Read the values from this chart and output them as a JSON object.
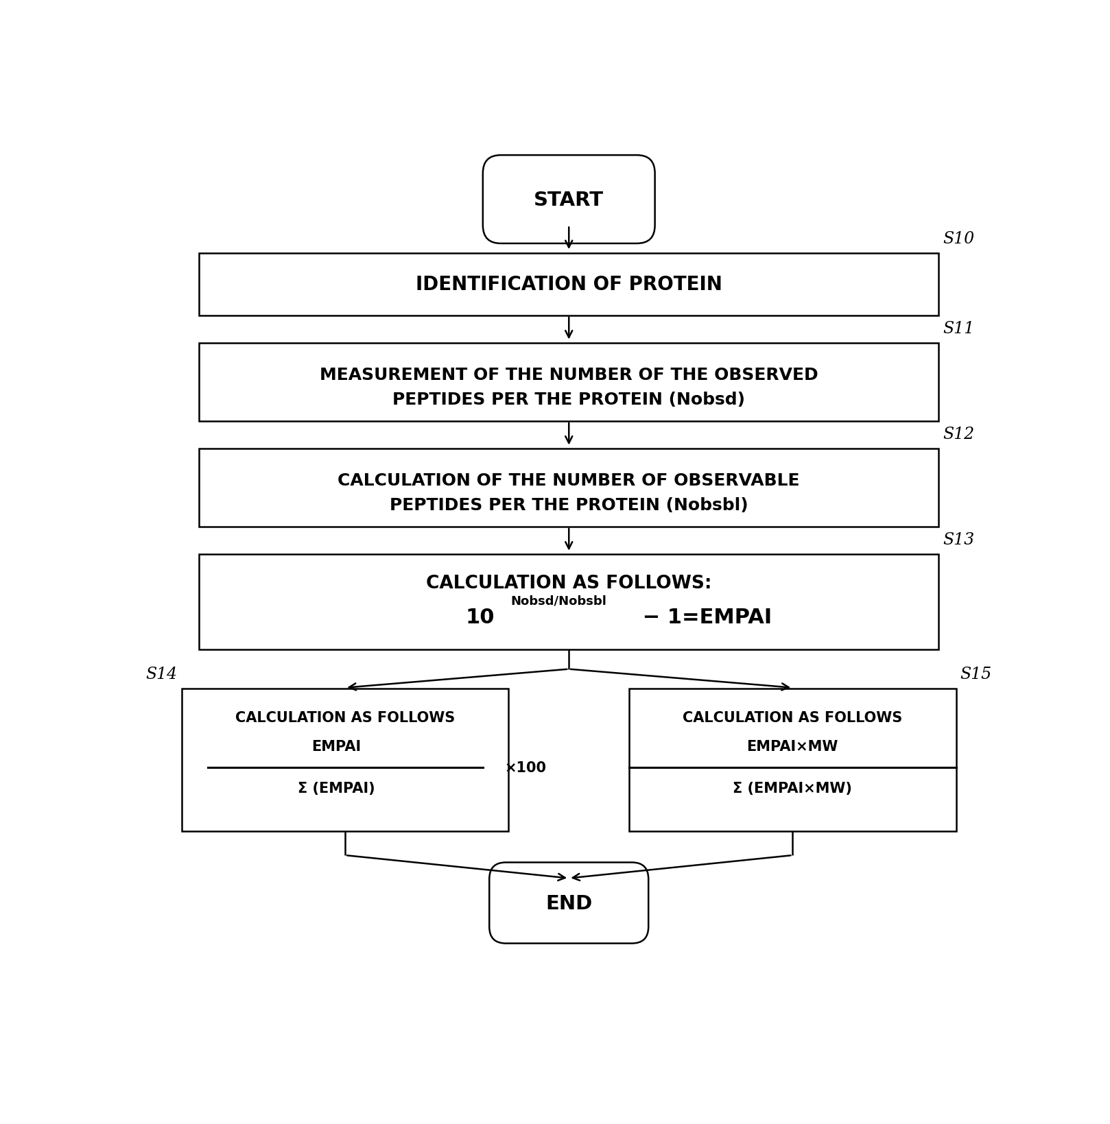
{
  "bg_color": "#ffffff",
  "line_color": "#000000",
  "text_color": "#000000",
  "fig_width": 16.18,
  "fig_height": 16.4,
  "start_label": "START",
  "end_label": "END",
  "s10_label": "S10",
  "s11_label": "S11",
  "s12_label": "S12",
  "s13_label": "S13",
  "s14_label": "S14",
  "s15_label": "S15",
  "box10_text": "IDENTIFICATION OF PROTEIN",
  "box11_line1": "MEASUREMENT OF THE NUMBER OF THE OBSERVED",
  "box11_line2": "PEPTIDES PER THE PROTEIN (Nobsd)",
  "box12_line1": "CALCULATION OF THE NUMBER OF OBSERVABLE",
  "box12_line2": "PEPTIDES PER THE PROTEIN (Nobsbl)",
  "box13_title": "CALCULATION AS FOLLOWS:",
  "box14_title": "CALCULATION AS FOLLOWS",
  "box14_num": "EMPAI",
  "box14_den": "Σ (EMPAI)",
  "box14_mult": "×100",
  "box15_title": "CALCULATION AS FOLLOWS",
  "box15_num": "EMPAI×MW",
  "box15_den": "Σ (EMPAI×MW)",
  "formula_base": "10",
  "formula_exp": "Nobsd/Nobsbl",
  "formula_rest": " − 1=EMPAI"
}
